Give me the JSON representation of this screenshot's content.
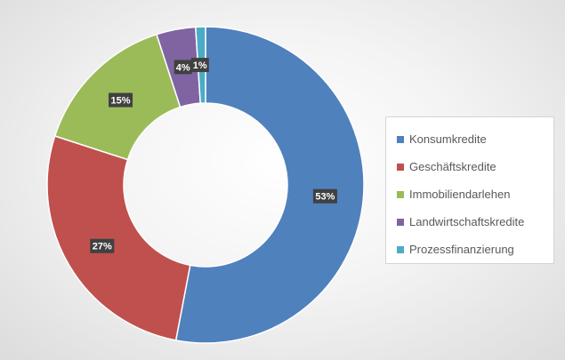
{
  "chart_data": {
    "type": "pie",
    "variant": "doughnut",
    "categories": [
      "Konsumkredite",
      "Geschäftskredite",
      "Immobiliendarlehen",
      "Landwirtschaftskredite",
      "Prozessfinanzierung"
    ],
    "values": [
      53,
      27,
      15,
      4,
      1
    ],
    "data_labels": [
      "53%",
      "27%",
      "15%",
      "4%",
      "1%"
    ],
    "colors": [
      "#4F81BD",
      "#C0504D",
      "#9BBB59",
      "#8064A2",
      "#4BACC6"
    ],
    "title": "",
    "legend_position": "right",
    "start_angle": "top, clockwise"
  },
  "legend": {
    "items": [
      {
        "label": "Konsumkredite",
        "color": "#4F81BD"
      },
      {
        "label": "Geschäftskredite",
        "color": "#C0504D"
      },
      {
        "label": "Immobiliendarlehen",
        "color": "#9BBB59"
      },
      {
        "label": "Landwirtschaftskredite",
        "color": "#8064A2"
      },
      {
        "label": "Prozessfinanzierung",
        "color": "#4BACC6"
      }
    ]
  }
}
